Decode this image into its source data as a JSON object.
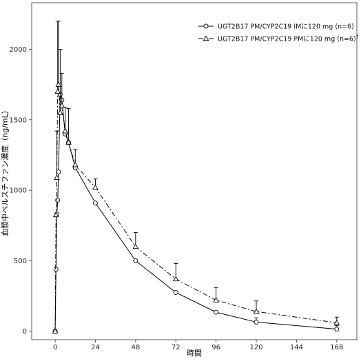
{
  "chart_data": {
    "type": "line",
    "xlabel": "時間",
    "ylabel": "血漿中ベルスチファン濃度（ng/mL）",
    "xlim": [
      -14,
      180
    ],
    "ylim": [
      -60,
      2330
    ],
    "xticks": [
      0,
      24,
      48,
      72,
      96,
      120,
      144,
      168
    ],
    "yticks": [
      0,
      500,
      1000,
      1500,
      2000
    ],
    "grid": false,
    "legend_position": "top-right",
    "series": [
      {
        "name": "UGT2B17 PM/CYP2C19 IMに120 mg (n=6)",
        "name_sup": "",
        "marker": "circle",
        "line_style": "solid",
        "color": "#000000",
        "x": [
          0,
          0.5,
          1,
          1.5,
          2,
          3,
          4,
          6,
          8,
          12,
          24,
          48,
          72,
          96,
          120,
          168
        ],
        "y": [
          0,
          440,
          830,
          930,
          1130,
          1680,
          1640,
          1400,
          1340,
          1160,
          910,
          500,
          275,
          135,
          65,
          15
        ],
        "err": [
          0,
          0,
          0,
          0,
          0,
          0,
          0,
          0,
          0,
          0,
          0,
          0,
          0,
          0,
          30,
          25
        ]
      },
      {
        "name": "UGT2B17 PM/CYP2C19 PMに120 mg (n=6)",
        "name_sup": "†",
        "marker": "triangle",
        "line_style": "dashdot",
        "color": "#000000",
        "x": [
          0,
          0.5,
          1,
          1.5,
          2,
          3,
          4,
          6,
          8,
          12,
          24,
          48,
          72,
          96,
          120,
          168
        ],
        "y": [
          0,
          825,
          1090,
          1700,
          1750,
          1550,
          1600,
          1420,
          1340,
          1180,
          1020,
          600,
          370,
          220,
          140,
          60
        ],
        "err": [
          0,
          0,
          330,
          500,
          450,
          450,
          230,
          170,
          240,
          110,
          60,
          100,
          110,
          90,
          75,
          40
        ]
      }
    ]
  }
}
